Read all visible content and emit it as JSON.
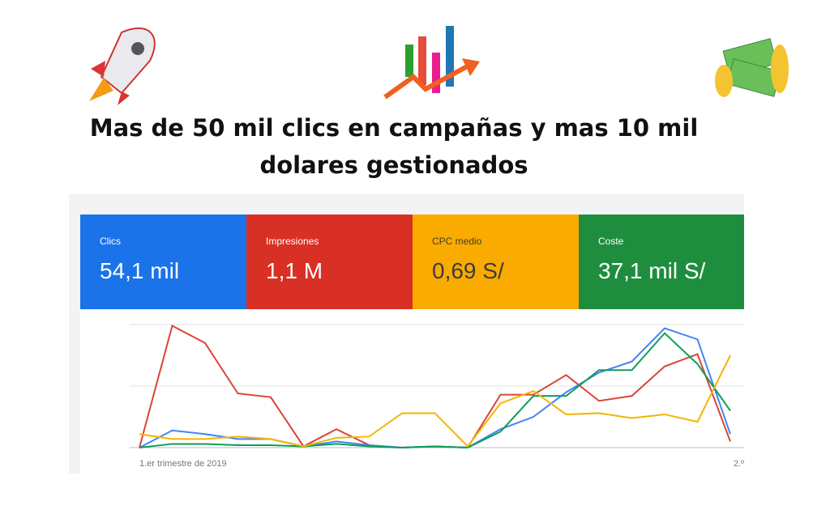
{
  "header": {
    "title_lines": [
      "Mas de 50 mil clics en campañas y mas 10 mil",
      "dolares gestionados"
    ]
  },
  "cards": [
    {
      "label": "Clics",
      "value": "54,1 mil",
      "color": "#1a73e8"
    },
    {
      "label": "Impresiones",
      "value": "1,1 M",
      "color": "#d93025"
    },
    {
      "label": "CPC medio",
      "value": "0,69 S/",
      "color": "#f9ab00"
    },
    {
      "label": "Coste",
      "value": "37,1 mil S/",
      "color": "#1e8e3e"
    }
  ],
  "chart_data": {
    "type": "line",
    "categories": [
      "1.er trimestre de 2019",
      null,
      null,
      null,
      null,
      null,
      null,
      null,
      null,
      null,
      null,
      null,
      null,
      null,
      null,
      null,
      null,
      null,
      "2.º"
    ],
    "ylim": [
      0,
      100
    ],
    "series": [
      {
        "color": "#db4437",
        "values": [
          0,
          99,
          85,
          44,
          41,
          1,
          15,
          2,
          0,
          1,
          0,
          43,
          43,
          59,
          38,
          42,
          66,
          76,
          5
        ]
      },
      {
        "color": "#4285f4",
        "values": [
          0,
          14,
          11,
          7,
          7,
          1,
          5,
          2,
          0,
          1,
          0,
          15,
          25,
          45,
          61,
          70,
          97,
          88,
          11
        ]
      },
      {
        "color": "#0f9d58",
        "values": [
          0,
          3,
          3,
          2,
          2,
          1,
          3,
          1,
          0,
          1,
          0,
          13,
          42,
          42,
          63,
          63,
          93,
          68,
          30
        ]
      },
      {
        "color": "#f4b400",
        "values": [
          11,
          7,
          7,
          9,
          7,
          1,
          8,
          9,
          28,
          28,
          1,
          36,
          46,
          27,
          28,
          24,
          27,
          21,
          75
        ]
      }
    ]
  }
}
